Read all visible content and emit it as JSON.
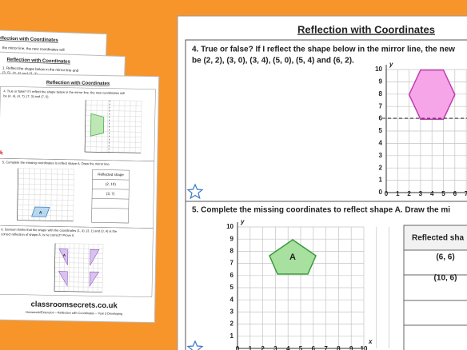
{
  "small_sheets": {
    "back": {
      "title": "Reflection with Coordinates",
      "line": "the mirror line, the new coordinates will"
    },
    "middle": {
      "title": "Reflection with Coordinates",
      "line1": "1. Reflect the shape below in the mirror line and",
      "line2": "(3, 5), (3, 4) and (3, 2)."
    },
    "front": {
      "title": "Reflection with Coordinates",
      "q4_line1": "4. True or false? If I reflect the shape below in the mirror line, the new coordinates will",
      "q4_line2": "be (4, 4), (4, 7), (7, 3) and (7, 6).",
      "q5_line": "5. Complete the missing coordinates to reflect shape A. Draw the mirror line.",
      "table_header": "Reflected shape",
      "table_rows": [
        "(2, 10)",
        "(3, 7)"
      ],
      "shape_label": "A",
      "q6_line1": "6. Samson thinks that the shape with the coordinates (1, 4), (3, 1) and (3, 4) is the",
      "q6_line2": "correct reflection of shape A. Is he correct? Prove it.",
      "shape_label_2": "A",
      "website": "classroomsecrets.co.uk",
      "footer": "Homework/Extension – Reflection with Coordinates – Year 3 Developing"
    }
  },
  "large_sheet": {
    "title": "Reflection with Coordinates",
    "q4": {
      "line1": "4. True or false? If I reflect the shape below in the mirror line, the new",
      "line2": "be (2, 2), (3, 0), (3, 4), (5, 0), (5, 4) and (6, 2).",
      "y_axis": "y",
      "xticks": [
        0,
        1,
        2,
        3,
        4,
        5,
        6,
        7
      ],
      "yticks": [
        0,
        1,
        2,
        3,
        4,
        5,
        6,
        7,
        8,
        9,
        10
      ]
    },
    "q5": {
      "line1": "5. Complete the missing coordinates to reflect shape A. Draw the mi",
      "y_axis": "y",
      "x_axis": "x",
      "xticks": [
        0,
        1,
        2,
        3,
        4,
        5,
        6,
        7,
        8,
        9,
        10
      ],
      "yticks": [
        1,
        2,
        3,
        4,
        5,
        6,
        7,
        8,
        9,
        10
      ],
      "shape_label": "A",
      "table_header": "Reflected sha",
      "table_rows": [
        "(6, 6)",
        "(10, 6)"
      ]
    }
  }
}
